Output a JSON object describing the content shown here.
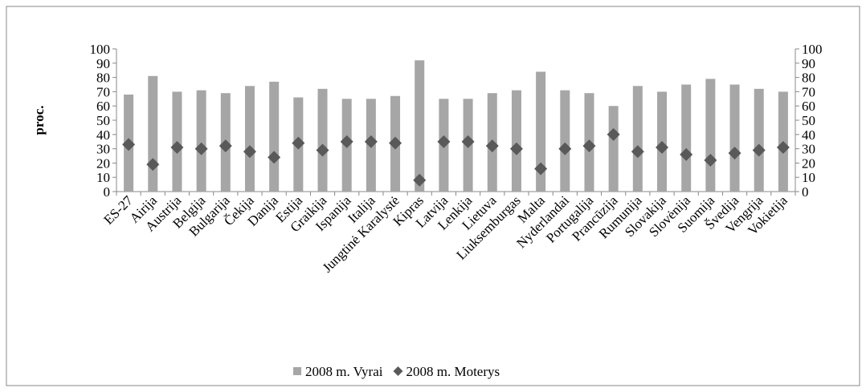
{
  "chart_data": {
    "type": "bar",
    "y_label": "proc.",
    "categories": [
      "ES-27",
      "Airija",
      "Austrija",
      "Belgija",
      "Bulgarija",
      "Čekija",
      "Danija",
      "Estija",
      "Graikija",
      "Ispanija",
      "Italija",
      "Jungtinė Karalystė",
      "Kipras",
      "Latvija",
      "Lenkija",
      "Lietuva",
      "Liuksemburgas",
      "Malta",
      "Nyderlandai",
      "Portugalija",
      "Prancūzija",
      "Rumunija",
      "Slovakija",
      "Slovėnija",
      "Suomija",
      "Švedija",
      "Vengrija",
      "Vokietija"
    ],
    "series": [
      {
        "name": "2008 m. Vyrai",
        "type": "bar",
        "color": "#a6a6a6",
        "values": [
          68,
          81,
          70,
          71,
          69,
          74,
          77,
          66,
          72,
          65,
          65,
          67,
          92,
          65,
          65,
          69,
          71,
          84,
          71,
          69,
          60,
          74,
          70,
          75,
          79,
          75,
          72,
          70
        ]
      },
      {
        "name": "2008 m. Moterys",
        "type": "scatter",
        "axis": "y2",
        "color": "#595959",
        "values": [
          33,
          19,
          31,
          30,
          32,
          28,
          24,
          34,
          29,
          35,
          35,
          34,
          8,
          35,
          35,
          32,
          30,
          16,
          30,
          32,
          40,
          28,
          31,
          26,
          22,
          27,
          29,
          31
        ]
      }
    ],
    "ylim": [
      0,
      100
    ],
    "yticks": [
      0,
      10,
      20,
      30,
      40,
      50,
      60,
      70,
      80,
      90,
      100
    ],
    "y2lim": [
      0,
      100
    ],
    "y2ticks": [
      0,
      10,
      20,
      30,
      40,
      50,
      60,
      70,
      80,
      90,
      100
    ],
    "legend": "bottom"
  }
}
